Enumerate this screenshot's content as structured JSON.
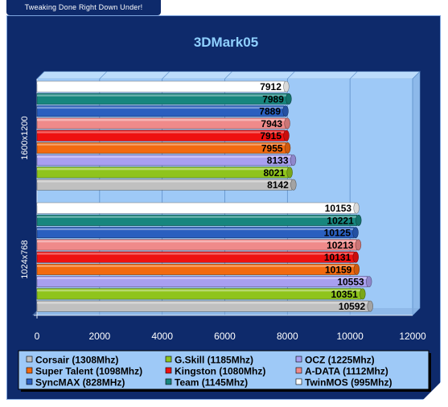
{
  "header": {
    "tagline": "Tweaking Done Right Down Under!"
  },
  "colors": {
    "frame": "#0e2a6b",
    "plot_bg": "#9ec9f7",
    "title": "#8fd0ff"
  },
  "chart_data": {
    "type": "bar",
    "orientation": "horizontal",
    "title": "3DMark05",
    "xlim": [
      0,
      12000
    ],
    "xticks": [
      0,
      2000,
      4000,
      6000,
      8000,
      10000,
      12000
    ],
    "grid": true,
    "legend_position": "bottom",
    "categories": [
      "1600x1200",
      "1024x768"
    ],
    "series": [
      {
        "name": "TwinMOS (995Mhz)",
        "color": "#ffffff",
        "values": [
          7912,
          10153
        ]
      },
      {
        "name": "Team (1145Mhz)",
        "color": "#17867e",
        "values": [
          7989,
          10221
        ]
      },
      {
        "name": "SyncMAX (828MHz)",
        "color": "#2a5fbf",
        "values": [
          7889,
          10125
        ]
      },
      {
        "name": "A-DATA (1112Mhz)",
        "color": "#ef8a8a",
        "values": [
          7943,
          10213
        ]
      },
      {
        "name": "Kingston (1080Mhz)",
        "color": "#ee1111",
        "values": [
          7915,
          10131
        ]
      },
      {
        "name": "Super Talent (1098Mhz)",
        "color": "#f26a10",
        "values": [
          7955,
          10159
        ]
      },
      {
        "name": "OCZ (1225Mhz)",
        "color": "#a89ff0",
        "values": [
          8133,
          10553
        ]
      },
      {
        "name": "G.Skill (1185Mhz)",
        "color": "#8fc41c",
        "values": [
          8021,
          10351
        ]
      },
      {
        "name": "Corsair (1308Mhz)",
        "color": "#c0c0c0",
        "values": [
          8142,
          10592
        ]
      }
    ],
    "legend_order": [
      "Corsair (1308Mhz)",
      "G.Skill (1185Mhz)",
      "OCZ (1225Mhz)",
      "Super Talent (1098Mhz)",
      "Kingston (1080Mhz)",
      "A-DATA (1112Mhz)",
      "SyncMAX (828MHz)",
      "Team (1145Mhz)",
      "TwinMOS (995Mhz)"
    ]
  }
}
